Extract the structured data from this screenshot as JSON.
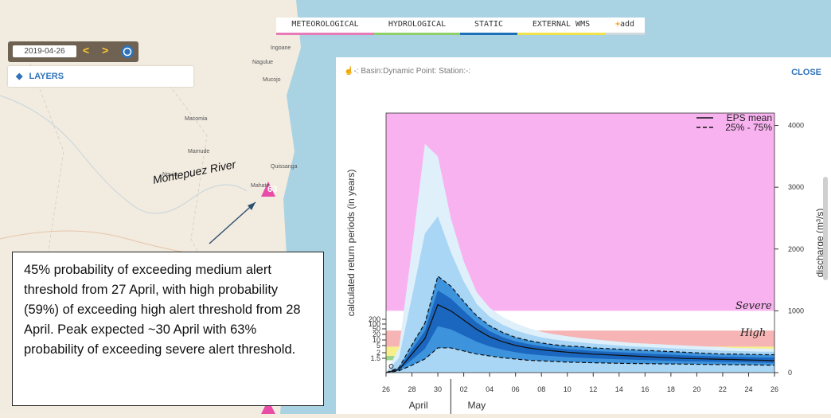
{
  "tabs": [
    {
      "label": "METEOROLOGICAL",
      "color": "#e87ab8"
    },
    {
      "label": "HYDROLOGICAL",
      "color": "#8fcf6a"
    },
    {
      "label": "STATIC",
      "color": "#1d6fb8"
    },
    {
      "label": "EXTERNAL WMS",
      "color": "#f0e24a"
    },
    {
      "label": "add",
      "color": "#cfd8dc"
    }
  ],
  "date": {
    "value": "2019-04-26",
    "prev": "<",
    "next": ">"
  },
  "layers_label": "LAYERS",
  "map": {
    "places": [
      "Ingoane",
      "Nagulue",
      "Mucojo",
      "Macomia",
      "Mamude",
      "Nquia",
      "Quissanga",
      "Mahate"
    ],
    "river_label": "Montepuez River",
    "station_value": "63"
  },
  "panel": {
    "title": "-: Basin:Dynamic Point: Station:-:",
    "close": "CLOSE"
  },
  "note_text": "45% probability of exceeding medium alert threshold from 27 April, with high probability (59%) of exceeding high alert threshold from 28 April. Peak expected ~30 April with 63% probability of exceeding severe alert threshold.",
  "annotations": {
    "severe": "Severe",
    "high": "High"
  },
  "chart_data": {
    "type": "line",
    "ylabel_left": "calculated return periods (in years)",
    "ylabel_right": "discharge (m³/s)",
    "left_ticks": [
      "1.5",
      "2",
      "5",
      "10",
      "20",
      "50",
      "100",
      "200"
    ],
    "right_ticks": [
      0,
      1000,
      2000,
      3000,
      4000
    ],
    "ylim": [
      0,
      4200
    ],
    "x_ticks": [
      "26",
      "28",
      "30",
      "02",
      "04",
      "06",
      "08",
      "10",
      "12",
      "14",
      "16",
      "18",
      "20",
      "22",
      "24",
      "26"
    ],
    "months": [
      "April",
      "May"
    ],
    "legend": [
      {
        "name": "EPS mean",
        "style": "solid"
      },
      {
        "name": "25% - 75%",
        "style": "dashed"
      }
    ],
    "threshold_bands": [
      {
        "name": "severe",
        "from": 1000,
        "to": 4200,
        "color": "#f9b2f0"
      },
      {
        "name": "high",
        "from": 420,
        "to": 680,
        "color": "#f6b4b4"
      },
      {
        "name": "medium",
        "from": 230,
        "to": 420,
        "color": "#f7ef8a"
      },
      {
        "name": "low",
        "from": 200,
        "to": 270,
        "color": "#9bd48a"
      }
    ],
    "x": [
      26,
      27,
      28,
      29,
      30,
      31,
      32,
      33,
      34,
      35,
      36,
      37,
      38,
      39,
      40,
      41,
      42,
      43,
      44,
      45,
      46,
      47,
      48,
      49,
      50,
      51,
      52,
      53,
      54,
      55,
      56
    ],
    "series": [
      {
        "name": "EPS mean",
        "values": [
          0,
          50,
          300,
          550,
          1100,
          1000,
          850,
          700,
          580,
          500,
          440,
          400,
          370,
          350,
          330,
          315,
          300,
          290,
          280,
          270,
          260,
          250,
          240,
          230,
          225,
          220,
          215,
          210,
          205,
          200,
          195
        ]
      },
      {
        "name": "25% - 75%",
        "band": "upper",
        "values": [
          0,
          80,
          450,
          800,
          1560,
          1400,
          1150,
          920,
          760,
          650,
          570,
          520,
          480,
          450,
          430,
          420,
          400,
          390,
          380,
          370,
          360,
          350,
          340,
          330,
          320,
          310,
          300,
          300,
          295,
          290,
          290
        ]
      },
      {
        "name": "25% - 75%",
        "band": "lower",
        "values": [
          0,
          30,
          120,
          220,
          400,
          400,
          350,
          300,
          270,
          240,
          220,
          200,
          190,
          180,
          170,
          165,
          160,
          155,
          150,
          148,
          145,
          142,
          140,
          138,
          135,
          132,
          130,
          128,
          125,
          122,
          120
        ]
      }
    ],
    "envelope_max": [
      0,
      400,
      2000,
      3700,
      3500,
      2500,
      1800,
      1300,
      1050,
      900,
      800,
      720,
      660,
      620,
      590,
      560,
      540,
      520,
      500,
      480,
      470,
      460,
      450,
      440,
      430,
      420,
      410,
      400,
      395,
      390,
      385
    ]
  }
}
